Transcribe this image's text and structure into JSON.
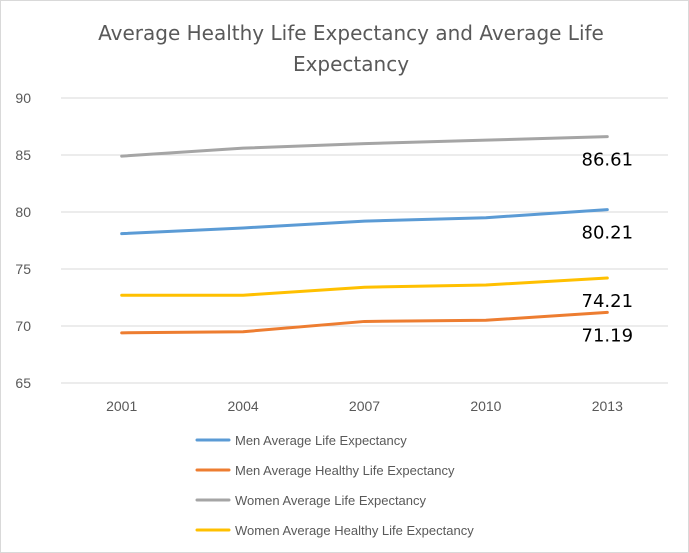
{
  "chart_data": {
    "type": "line",
    "title_lines": [
      "Average Healthy Life Expectancy and Average Life",
      "Expectancy"
    ],
    "categories": [
      "2001",
      "2004",
      "2007",
      "2010",
      "2013"
    ],
    "ylim": [
      65,
      90
    ],
    "yticks": [
      "90",
      "85",
      "80",
      "75",
      "70",
      "65"
    ],
    "grid": true,
    "legend_position": "bottom",
    "series": [
      {
        "name": "Men Average Life Expectancy",
        "color": "#5B9BD5",
        "values": [
          78.1,
          78.6,
          79.2,
          79.5,
          80.21
        ],
        "end_label": "80.21"
      },
      {
        "name": "Men Average Healthy Life Expectancy",
        "color": "#ED7D31",
        "values": [
          69.4,
          69.5,
          70.4,
          70.5,
          71.19
        ],
        "end_label": "71.19"
      },
      {
        "name": "Women Average Life Expectancy",
        "color": "#A5A5A5",
        "values": [
          84.9,
          85.6,
          86.0,
          86.3,
          86.61
        ],
        "end_label": "86.61"
      },
      {
        "name": "Women Average Healthy Life Expectancy",
        "color": "#FFC000",
        "values": [
          72.7,
          72.7,
          73.4,
          73.6,
          74.21
        ],
        "end_label": "74.21"
      }
    ]
  }
}
